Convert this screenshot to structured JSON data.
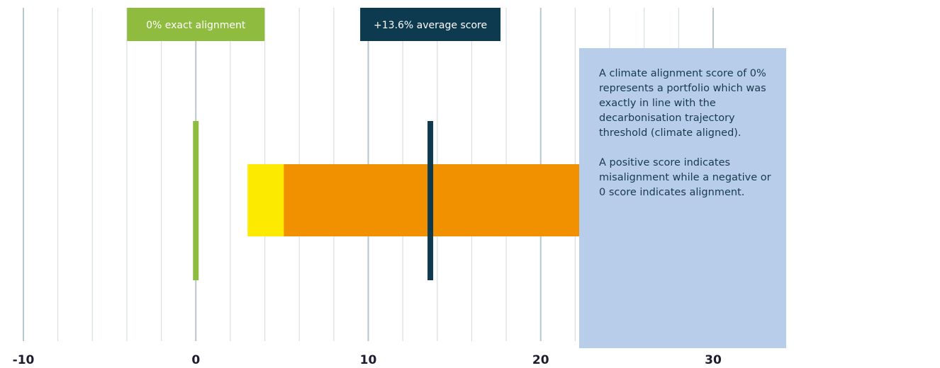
{
  "chart_data": {
    "type": "bar",
    "x_ticks": [
      -10,
      0,
      10,
      20,
      30
    ],
    "xlim": [
      -10,
      30
    ],
    "grid": true,
    "range_bar": {
      "segments": [
        {
          "from": 3.0,
          "to": 5.1,
          "color": "#fcea00"
        },
        {
          "from": 5.1,
          "to": 27.0,
          "color": "#f29100"
        }
      ]
    },
    "markers": [
      {
        "value": 0,
        "label": "0% exact alignment",
        "color": "#8fbc3f"
      },
      {
        "value": 13.6,
        "label": "+13.6% average score",
        "color": "#0e3a4f"
      }
    ]
  },
  "note": {
    "paragraph_1": "A climate alignment score of 0% represents a portfolio which was exactly in line with the decarbonisation trajectory threshold (climate aligned).",
    "paragraph_2": "A positive score indicates misalignment while a negative or 0 score indicates alignment."
  },
  "colors": {
    "grid_major": "#b8c7cf",
    "grid_minor": "#d7dfe3",
    "note_background": "#b8cdea",
    "note_text": "#173a4d"
  }
}
